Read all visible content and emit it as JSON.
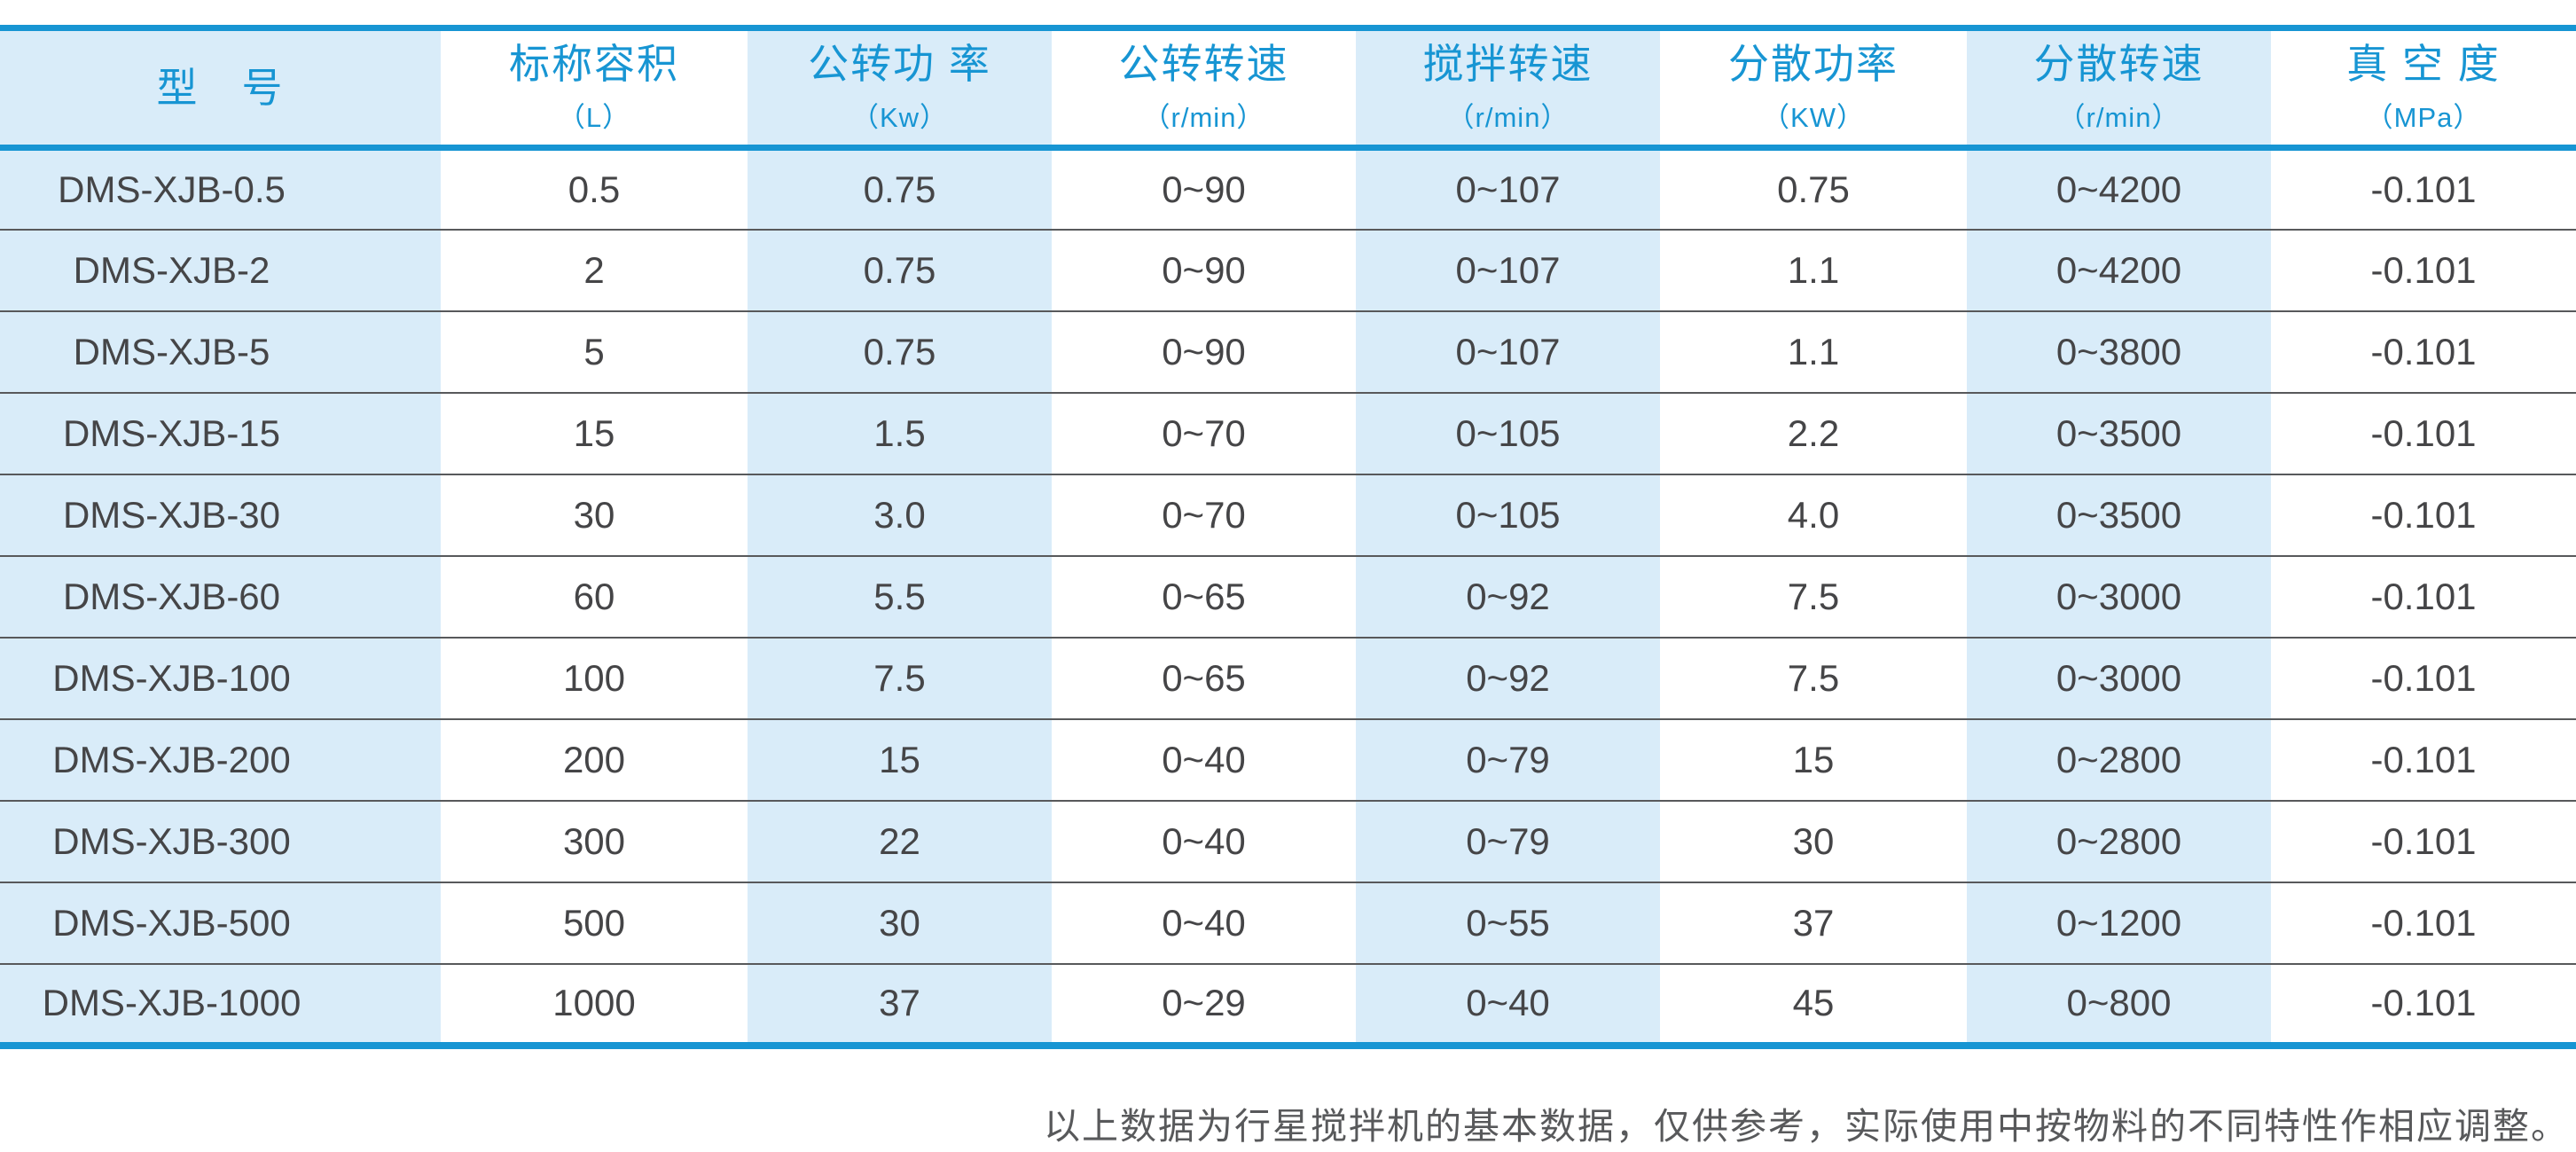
{
  "table": {
    "columns": [
      {
        "label": "型　号",
        "unit": ""
      },
      {
        "label": "标称容积",
        "unit": "（L）"
      },
      {
        "label": "公转功 率",
        "unit": "（Kw）"
      },
      {
        "label": "公转转速",
        "unit": "（r/min）"
      },
      {
        "label": "搅拌转速",
        "unit": "（r/min）"
      },
      {
        "label": "分散功率",
        "unit": "（KW）"
      },
      {
        "label": "分散转速",
        "unit": "（r/min）"
      },
      {
        "label": "真 空 度",
        "unit": "（MPa）"
      }
    ],
    "rows": [
      [
        "DMS-XJB-0.5",
        "0.5",
        "0.75",
        "0~90",
        "0~107",
        "0.75",
        "0~4200",
        "-0.101"
      ],
      [
        "DMS-XJB-2",
        "2",
        "0.75",
        "0~90",
        "0~107",
        "1.1",
        "0~4200",
        "-0.101"
      ],
      [
        "DMS-XJB-5",
        "5",
        "0.75",
        "0~90",
        "0~107",
        "1.1",
        "0~3800",
        "-0.101"
      ],
      [
        "DMS-XJB-15",
        "15",
        "1.5",
        "0~70",
        "0~105",
        "2.2",
        "0~3500",
        "-0.101"
      ],
      [
        "DMS-XJB-30",
        "30",
        "3.0",
        "0~70",
        "0~105",
        "4.0",
        "0~3500",
        "-0.101"
      ],
      [
        "DMS-XJB-60",
        "60",
        "5.5",
        "0~65",
        "0~92",
        "7.5",
        "0~3000",
        "-0.101"
      ],
      [
        "DMS-XJB-100",
        "100",
        "7.5",
        "0~65",
        "0~92",
        "7.5",
        "0~3000",
        "-0.101"
      ],
      [
        "DMS-XJB-200",
        "200",
        "15",
        "0~40",
        "0~79",
        "15",
        "0~2800",
        "-0.101"
      ],
      [
        "DMS-XJB-300",
        "300",
        "22",
        "0~40",
        "0~79",
        "30",
        "0~2800",
        "-0.101"
      ],
      [
        "DMS-XJB-500",
        "500",
        "30",
        "0~40",
        "0~55",
        "37",
        "0~1200",
        "-0.101"
      ],
      [
        "DMS-XJB-1000",
        "1000",
        "37",
        "0~29",
        "0~40",
        "45",
        "0~800",
        "-0.101"
      ]
    ]
  },
  "footnote": "以上数据为行星搅拌机的基本数据，仅供参考，实际使用中按物料的不同特性作相应调整。",
  "colors": {
    "accent_blue": "#1795d3",
    "band_blue": "#d9ecf9",
    "text_dark": "#454547",
    "separator_gray": "#58595b",
    "footnote_gray": "#58595b"
  }
}
